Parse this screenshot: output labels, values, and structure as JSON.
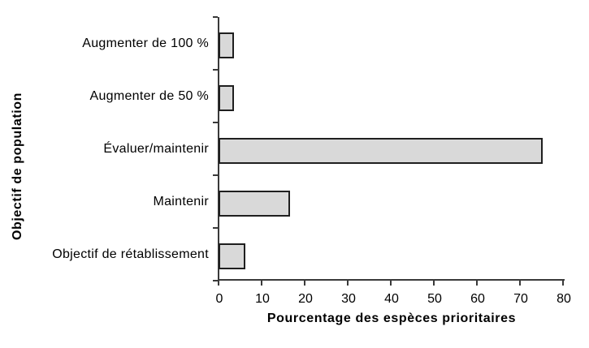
{
  "chart_data": {
    "type": "bar",
    "orientation": "horizontal",
    "title": "",
    "xlabel": "Pourcentage des espèces prioritaires",
    "ylabel": "Objectif de population",
    "categories": [
      "Augmenter de 100 %",
      "Augmenter de 50 %",
      "Évaluer/maintenir",
      "Maintenir",
      "Objectif de rétablissement"
    ],
    "values": [
      2.7,
      2.7,
      74.4,
      15.6,
      5.2
    ],
    "xlim": [
      0,
      80
    ],
    "xticks": [
      0,
      10,
      20,
      30,
      40,
      50,
      60,
      70,
      80
    ],
    "grid": false,
    "legend": "none",
    "colors": {
      "bar_fill": "#d9d9d9",
      "bar_border": "#1f1f1f",
      "axis": "#3a3a3a",
      "text": "#000000",
      "background": "#ffffff"
    }
  }
}
